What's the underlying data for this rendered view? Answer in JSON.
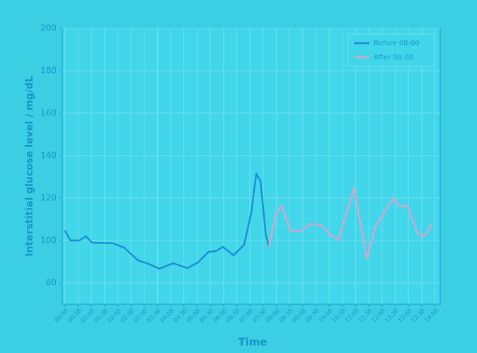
{
  "chart_data": {
    "type": "line",
    "xlabel": "Time",
    "ylabel": "Interstitial glucose level / mg/dL",
    "xlim": [
      -0.1,
      14.2
    ],
    "ylim": [
      70,
      200
    ],
    "yticks": [
      80,
      100,
      120,
      140,
      160,
      180,
      200
    ],
    "xticks": [
      {
        "value": 0,
        "label": "00:00"
      },
      {
        "value": 0.5,
        "label": "00:30"
      },
      {
        "value": 1,
        "label": "01:00"
      },
      {
        "value": 1.5,
        "label": "01:30"
      },
      {
        "value": 2,
        "label": "02:00"
      },
      {
        "value": 2.5,
        "label": "02:30"
      },
      {
        "value": 3,
        "label": "03:00"
      },
      {
        "value": 3.5,
        "label": "03:30"
      },
      {
        "value": 4,
        "label": "04:00"
      },
      {
        "value": 4.5,
        "label": "04:30"
      },
      {
        "value": 5,
        "label": "05:00"
      },
      {
        "value": 5.5,
        "label": "05:30"
      },
      {
        "value": 6,
        "label": "06:00"
      },
      {
        "value": 6.5,
        "label": "06:30"
      },
      {
        "value": 7,
        "label": "07:00"
      },
      {
        "value": 7.5,
        "label": "07:30"
      },
      {
        "value": 8,
        "label": "08:00"
      },
      {
        "value": 8.5,
        "label": "08:30"
      },
      {
        "value": 9,
        "label": "09:00"
      },
      {
        "value": 9.5,
        "label": "09:30"
      },
      {
        "value": 10,
        "label": "10:00"
      },
      {
        "value": 10.5,
        "label": "10:30"
      },
      {
        "value": 11,
        "label": "11:00"
      },
      {
        "value": 11.5,
        "label": "11:30"
      },
      {
        "value": 12,
        "label": "12:00"
      },
      {
        "value": 12.5,
        "label": "12:30"
      },
      {
        "value": 13,
        "label": "13:00"
      },
      {
        "value": 13.5,
        "label": "13:30"
      },
      {
        "value": 14,
        "label": "14:00"
      }
    ],
    "grid": true,
    "legend": "upper right",
    "series": [
      {
        "name": "Before 08:00",
        "color": "#1b8fd2",
        "x": [
          0,
          0.21,
          0.54,
          0.8,
          1.02,
          1.82,
          2.23,
          2.76,
          3.16,
          3.57,
          4.1,
          4.64,
          5.04,
          5.44,
          5.71,
          5.98,
          6.38,
          6.78,
          7.05,
          7.24,
          7.4,
          7.6,
          7.72
        ],
        "values": [
          104.7,
          100,
          100,
          102,
          99,
          98.7,
          96.7,
          90.7,
          89,
          86.7,
          89.3,
          87,
          89.7,
          94.7,
          95,
          97,
          93,
          98,
          113,
          131.5,
          128,
          103,
          97
        ]
      },
      {
        "name": "After 08:00",
        "color": "#d9a3cc",
        "x": [
          7.72,
          7.99,
          8.2,
          8.52,
          8.93,
          9.33,
          9.73,
          10.0,
          10.35,
          10.94,
          11.42,
          11.74,
          12.41,
          12.68,
          12.95,
          13.35,
          13.62,
          13.89
        ],
        "values": [
          97,
          113,
          116.4,
          104.7,
          104.7,
          108,
          107,
          103,
          100.3,
          124.7,
          91.3,
          106.4,
          119.7,
          116,
          116.4,
          103,
          102,
          108
        ]
      }
    ]
  }
}
